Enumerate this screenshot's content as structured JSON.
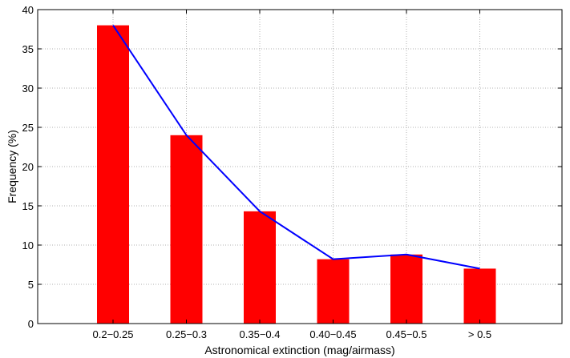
{
  "chart_data": {
    "type": "bar",
    "categories": [
      "0.2−0.25",
      "0.25−0.3",
      "0.35−0.4",
      "0.40−0.45",
      "0.45−0.5",
      "> 0.5"
    ],
    "series": [
      {
        "type": "bar",
        "values": [
          38,
          24,
          14.3,
          8.2,
          8.8,
          7.0
        ],
        "color": "#ff0000"
      },
      {
        "type": "line",
        "values": [
          38,
          24,
          14.3,
          8.2,
          8.8,
          7.0
        ],
        "color": "#0000ff"
      }
    ],
    "xlabel": "Astronomical extinction (mag/airmass)",
    "ylabel": "Frequency (%)",
    "ylim": [
      0,
      40
    ],
    "yticks": [
      0,
      5,
      10,
      15,
      20,
      25,
      30,
      35,
      40
    ],
    "grid": true
  }
}
